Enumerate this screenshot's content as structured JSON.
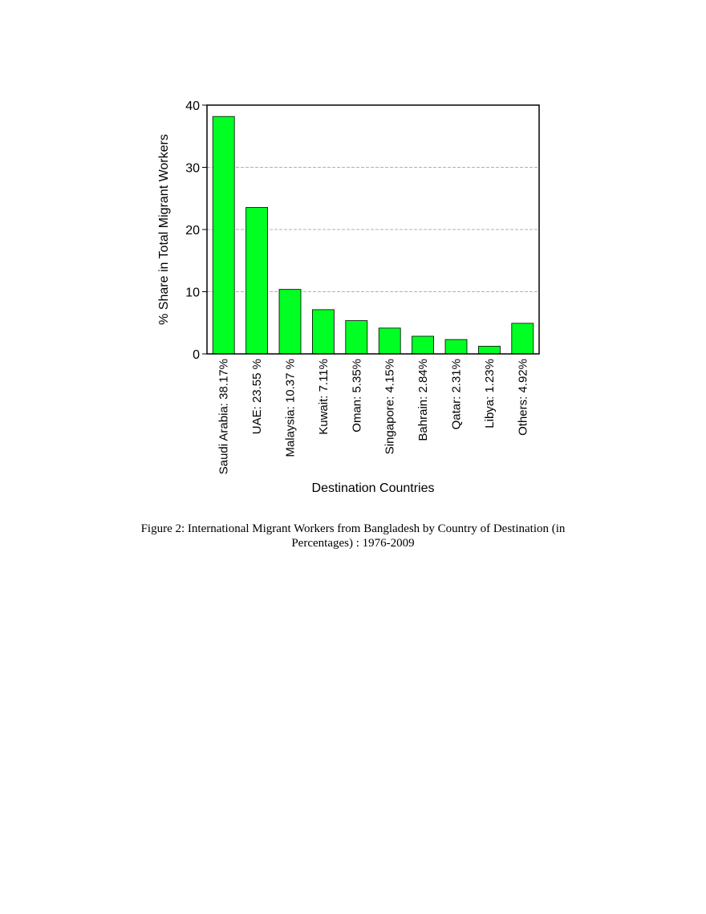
{
  "figure": {
    "caption_line1": "Figure 2: International Migrant Workers from Bangladesh by Country of Destination (in",
    "caption_line2": "Percentages) : 1976-2009"
  },
  "chart_data": {
    "type": "bar",
    "categories": [
      "Saudi Arabia: 38.17%",
      "UAE: 23.55 %",
      "Malaysia: 10.37 %",
      "Kuwait: 7.11%",
      "Oman: 5.35%",
      "Singapore: 4.15%",
      "Bahrain: 2.84%",
      "Qatar: 2.31%",
      "Libya: 1.23%",
      "Others: 4.92%"
    ],
    "values": [
      38.17,
      23.55,
      10.37,
      7.11,
      5.35,
      4.15,
      2.84,
      2.31,
      1.23,
      4.92
    ],
    "xlabel": "Destination Countries",
    "ylabel": "% Share in Total Migrant Workers",
    "ylim": [
      0,
      40
    ],
    "yticks": [
      0,
      10,
      20,
      30,
      40
    ],
    "grid": true,
    "bar_color": "#00ff22",
    "bar_edge_color": "#000000"
  }
}
